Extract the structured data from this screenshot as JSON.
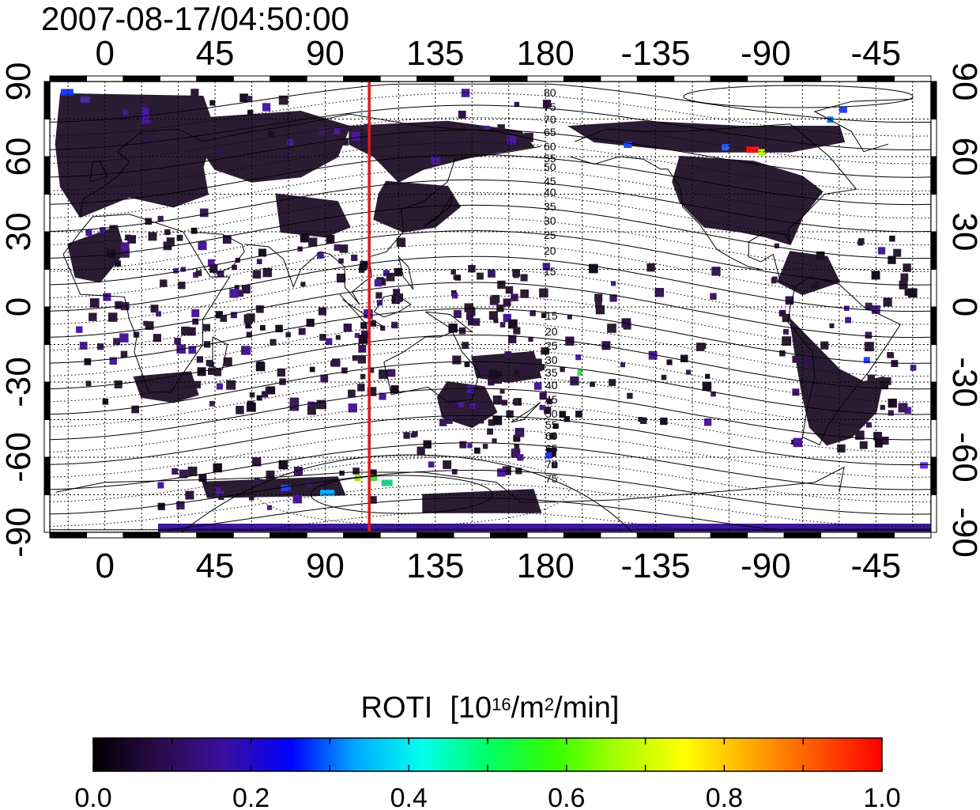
{
  "plot": {
    "timestamp": "2007-08-17/04:50:00",
    "lon_tick_labels": [
      "0",
      "45",
      "90",
      "135",
      "180",
      "-135",
      "-90",
      "-45"
    ],
    "lat_tick_labels": [
      "90",
      "60",
      "30",
      "0",
      "-30",
      "-60",
      "-90"
    ],
    "magnetic_latitude_labels_north": [
      "80",
      "75",
      "70",
      "65",
      "60",
      "55",
      "50",
      "45",
      "40",
      "35",
      "30",
      "25",
      "20",
      "15"
    ],
    "magnetic_latitude_labels_south": [
      "15",
      "20",
      "25",
      "30",
      "35",
      "40",
      "45",
      "50",
      "55",
      "60",
      "65",
      "70",
      "75"
    ],
    "terminator_line_lon": 108,
    "terminator_line_color": "#dd1a1a",
    "land_data_color": "#2b1c33",
    "background_color": "#ffffff"
  },
  "colorbar": {
    "label": "ROTI",
    "unit_base": "[10",
    "unit_exp1": "16",
    "unit_mid": "/m",
    "unit_exp2": "2",
    "unit_end": "/min]",
    "tick_labels": [
      "0.0",
      "0.2",
      "0.4",
      "0.6",
      "0.8",
      "1.0"
    ],
    "range": [
      0.0,
      1.0
    ],
    "stops": [
      "#000000",
      "#2a0a4a",
      "#3a10a0",
      "#0000ff",
      "#00aaff",
      "#00ffee",
      "#00ff66",
      "#33ff00",
      "#aaff00",
      "#ffff00",
      "#ffaa00",
      "#ff5500",
      "#ff0000"
    ]
  }
}
